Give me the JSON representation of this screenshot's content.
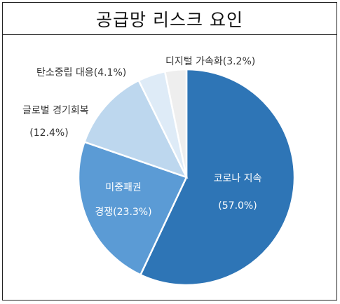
{
  "title": "공급망 리스크 요인",
  "chart_data": {
    "type": "pie",
    "title": "공급망 리스크 요인",
    "legend": "none",
    "slices": [
      {
        "label": "코로나 지속",
        "value": 57.0,
        "value_text": "(57.0%)",
        "color": "#2E75B6",
        "text_color": "#ffffff"
      },
      {
        "label": "미중패권 경쟁",
        "line1": "미중패권",
        "line2": "경쟁(23.3%)",
        "value": 23.3,
        "color": "#5B9BD5",
        "text_color": "#ffffff"
      },
      {
        "label": "글로벌 경기회복",
        "line1": "글로벌 경기회복",
        "line2": "(12.4%)",
        "value": 12.4,
        "color": "#BDD7EE",
        "text_color": "#333333"
      },
      {
        "label": "탄소중립 대응",
        "line1": "탄소중립 대응(4.1%)",
        "value": 4.1,
        "color": "#DEEBF7",
        "text_color": "#333333"
      },
      {
        "label": "디지털 가속화",
        "line1": "디지털 가속화(3.2%)",
        "value": 3.2,
        "color": "#EEEEEE",
        "text_color": "#333333"
      }
    ]
  }
}
